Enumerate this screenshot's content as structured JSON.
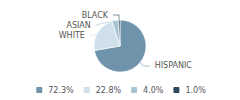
{
  "chart_data": {
    "type": "pie",
    "categories": [
      "HISPANIC",
      "WHITE",
      "ASIAN",
      "BLACK"
    ],
    "values": [
      72.3,
      22.8,
      4.0,
      1.0
    ],
    "value_labels": [
      "72.3%",
      "22.8%",
      "4.0%",
      "1.0%"
    ],
    "colors": [
      "#6e93ab",
      "#cfe0eb",
      "#a8c4d4",
      "#2d4a5e"
    ],
    "legend": "bottom"
  }
}
